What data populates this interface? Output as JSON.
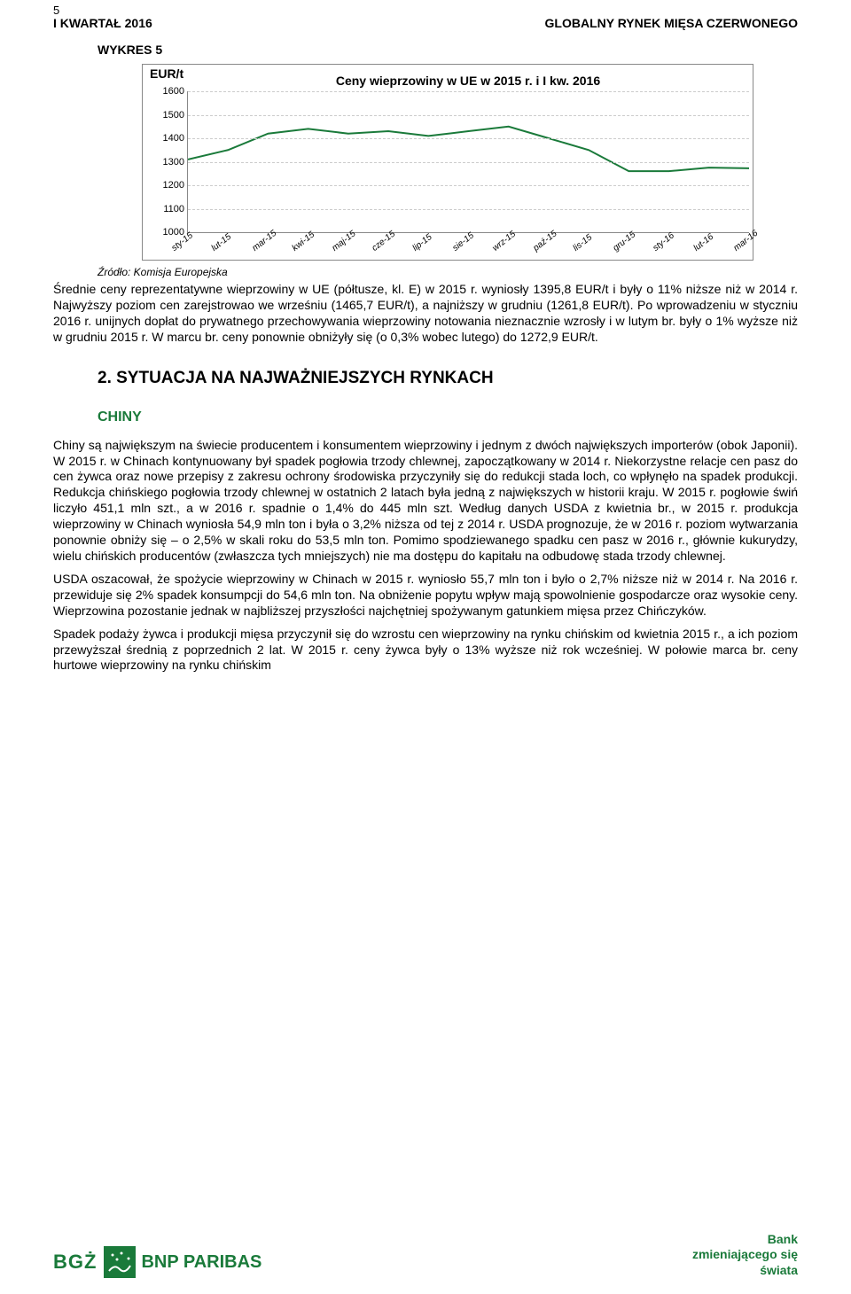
{
  "page_number": "5",
  "header_left": "I KWARTAŁ 2016",
  "header_right": "GLOBALNY RYNEK MIĘSA CZERWONEGO",
  "chart_label": "WYKRES 5",
  "chart": {
    "type": "line",
    "ylabel": "EUR/t",
    "title": "Ceny wieprzowiny w UE w 2015 r. i I kw. 2016",
    "ylim": [
      1000,
      1600
    ],
    "ytick_step": 100,
    "yticks": [
      "1000",
      "1100",
      "1200",
      "1300",
      "1400",
      "1500",
      "1600"
    ],
    "xlabels": [
      "sty-15",
      "lut-15",
      "mar-15",
      "kwi-15",
      "maj-15",
      "cze-15",
      "lip-15",
      "sie-15",
      "wrz-15",
      "paź-15",
      "lis-15",
      "gru-15",
      "sty-16",
      "lut-16",
      "mar-16"
    ],
    "values": [
      1310,
      1350,
      1420,
      1440,
      1420,
      1430,
      1410,
      1430,
      1450,
      1400,
      1350,
      1260,
      1260,
      1275,
      1272
    ],
    "line_color": "#1a7a3a",
    "grid_color": "#cccccc",
    "axis_color": "#888888",
    "background_color": "#ffffff",
    "title_fontsize": 14,
    "tick_fontsize": 11,
    "line_width": 2
  },
  "chart_source": "Źródło: Komisja Europejska",
  "paragraph_chart": "Średnie ceny reprezentatywne wieprzowiny w UE (półtusze, kl. E) w 2015 r. wyniosły 1395,8 EUR/t i były o 11% niższe niż w 2014 r. Najwyższy poziom cen zarejstrowao we wrześniu (1465,7 EUR/t), a najniższy w grudniu (1261,8 EUR/t). Po wprowadzeniu w styczniu 2016 r. unijnych dopłat do prywatnego przechowywania wieprzowiny notowania nieznacznie wzrosły i w lutym br. były o 1% wyższe niż w grudniu 2015 r. W marcu br. ceny ponownie obniżyły się (o 0,3% wobec lutego) do 1272,9 EUR/t.",
  "section_heading": "2.    SYTUACJA NA NAJWAŻNIEJSZYCH RYNKACH",
  "subheading": "CHINY",
  "para1": "Chiny są największym na świecie producentem i konsumentem wieprzowiny i jednym z dwóch największych importerów (obok Japonii). W 2015 r. w Chinach kontynuowany był spadek pogłowia trzody chlewnej, zapoczątkowany w 2014 r. Niekorzystne relacje cen pasz do cen żywca oraz nowe przepisy z zakresu ochrony środowiska przyczyniły się do redukcji stada loch, co wpłynęło na spadek produkcji. Redukcja chińskiego pogłowia trzody chlewnej w ostatnich 2 latach była jedną z największych w historii kraju. W 2015 r. pogłowie świń liczyło 451,1 mln szt., a w 2016 r. spadnie o 1,4% do 445 mln szt. Według danych USDA z kwietnia br., w 2015 r. produkcja wieprzowiny w Chinach wyniosła 54,9 mln ton i była o 3,2% niższa od tej z 2014 r. USDA prognozuje, że w 2016 r. poziom wytwarzania ponownie obniży się – o 2,5% w skali roku do 53,5 mln ton. Pomimo spodziewanego spadku cen pasz w 2016 r., głównie kukurydzy, wielu chińskich producentów (zwłaszcza tych mniejszych) nie ma dostępu do kapitału na odbudowę stada trzody chlewnej.",
  "para2": "USDA oszacował, że spożycie wieprzowiny w Chinach w 2015 r. wyniosło 55,7 mln ton i było o 2,7% niższe niż w 2014 r. Na 2016 r. przewiduje się 2% spadek konsumpcji do 54,6 mln ton. Na obniżenie popytu wpływ mają spowolnienie gospodarcze oraz wysokie ceny. Wieprzowina pozostanie jednak w najbliższej przyszłości najchętniej spożywanym gatunkiem mięsa przez Chińczyków.",
  "para3": "Spadek podaży żywca i produkcji mięsa przyczynił się do wzrostu cen wieprzowiny na rynku chińskim od kwietnia 2015 r., a ich poziom przewyższał średnią z poprzednich 2 lat. W 2015 r. ceny żywca były o 13% wyższe niż rok wcześniej. W połowie marca br. ceny hurtowe wieprzowiny na rynku chińskim",
  "footer": {
    "logo_bgz": "BGŻ",
    "logo_bnp": "BNP PARIBAS",
    "slogan_l1": "Bank",
    "slogan_l2": "zmieniającego się",
    "slogan_l3": "świata"
  }
}
